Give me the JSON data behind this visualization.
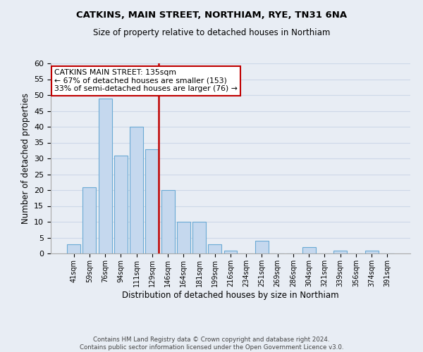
{
  "title": "CATKINS, MAIN STREET, NORTHIAM, RYE, TN31 6NA",
  "subtitle": "Size of property relative to detached houses in Northiam",
  "xlabel": "Distribution of detached houses by size in Northiam",
  "ylabel": "Number of detached properties",
  "bin_labels": [
    "41sqm",
    "59sqm",
    "76sqm",
    "94sqm",
    "111sqm",
    "129sqm",
    "146sqm",
    "164sqm",
    "181sqm",
    "199sqm",
    "216sqm",
    "234sqm",
    "251sqm",
    "269sqm",
    "286sqm",
    "304sqm",
    "321sqm",
    "339sqm",
    "356sqm",
    "374sqm",
    "391sqm"
  ],
  "bar_values": [
    3,
    21,
    49,
    31,
    40,
    33,
    20,
    10,
    10,
    3,
    1,
    0,
    4,
    0,
    0,
    2,
    0,
    1,
    0,
    1,
    0
  ],
  "bar_color": "#c5d8ee",
  "bar_edge_color": "#6aaad4",
  "ylim": [
    0,
    60
  ],
  "yticks": [
    0,
    5,
    10,
    15,
    20,
    25,
    30,
    35,
    40,
    45,
    50,
    55,
    60
  ],
  "vline_color": "#c00000",
  "annotation_title": "CATKINS MAIN STREET: 135sqm",
  "annotation_line1": "← 67% of detached houses are smaller (153)",
  "annotation_line2": "33% of semi-detached houses are larger (76) →",
  "annotation_box_color": "#ffffff",
  "annotation_box_edge": "#c00000",
  "grid_color": "#cdd8e8",
  "bg_color": "#e8edf4",
  "footer_line1": "Contains HM Land Registry data © Crown copyright and database right 2024.",
  "footer_line2": "Contains public sector information licensed under the Open Government Licence v3.0."
}
